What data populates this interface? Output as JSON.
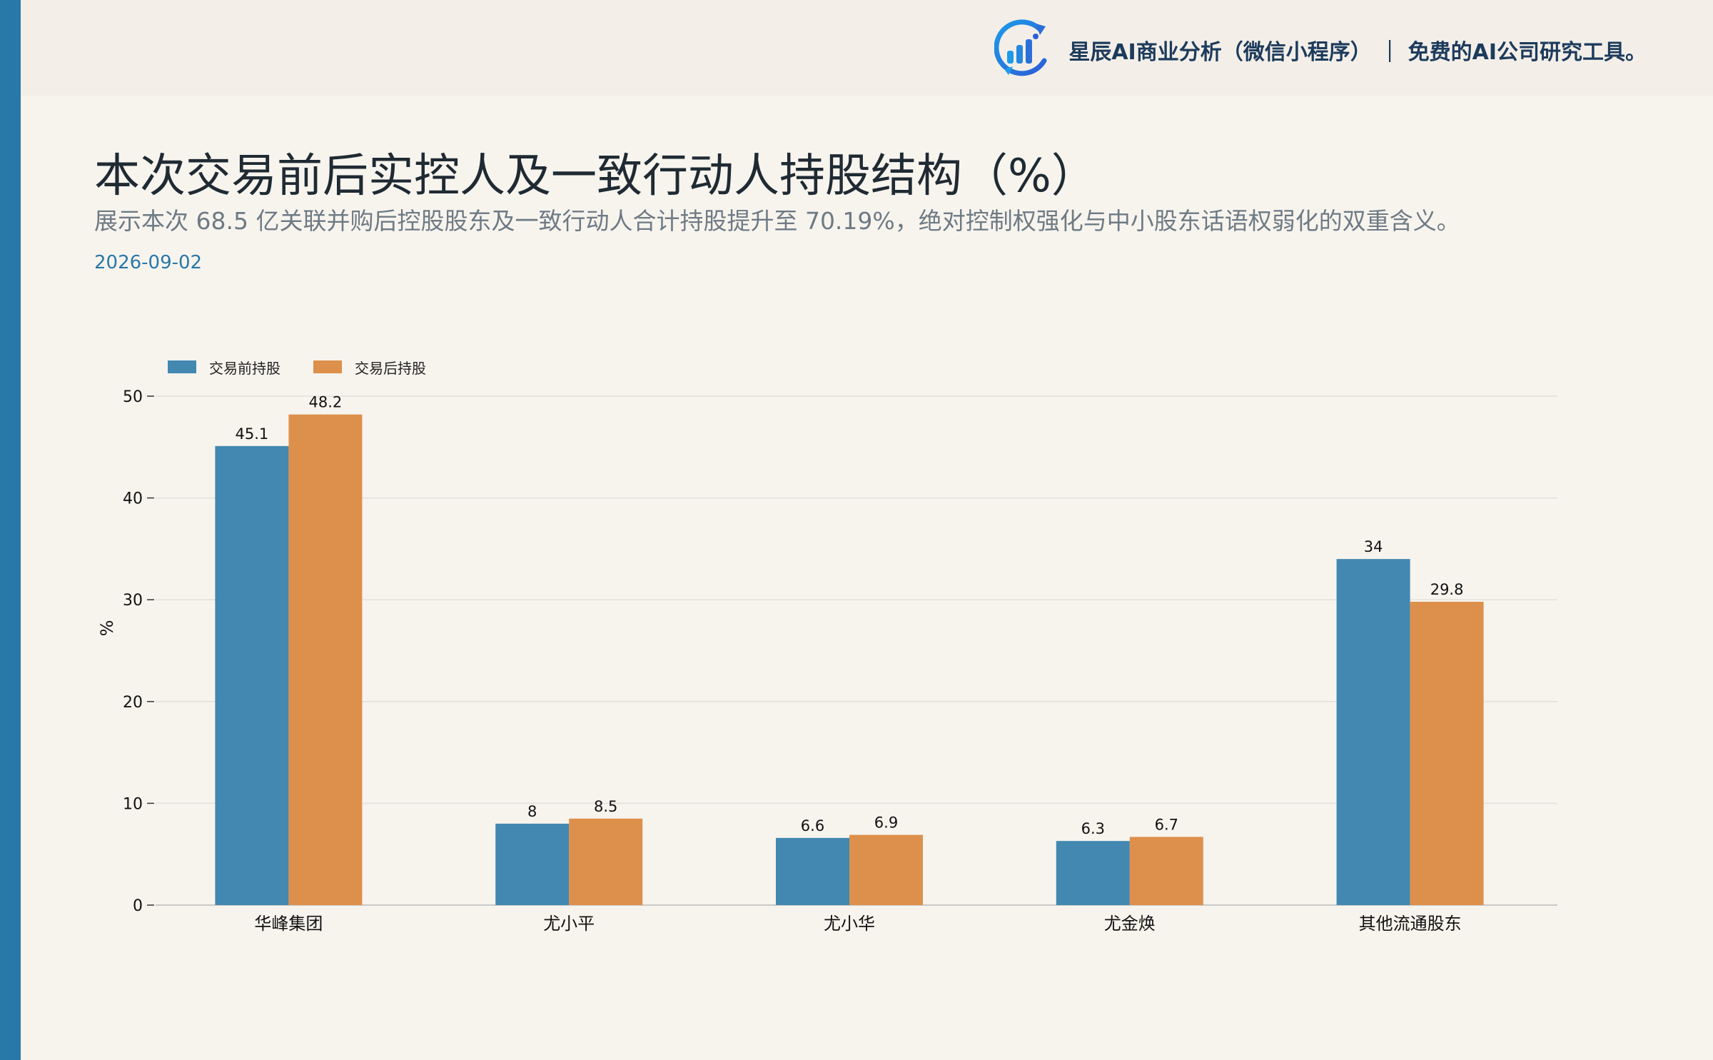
{
  "header": {
    "brand_text": "星辰AI商业分析（微信小程序） ｜ 免费的AI公司研究工具。",
    "brand_icon": "bar-chart-refresh-icon"
  },
  "title": "本次交易前后实控人及一致行动人持股结构（%）",
  "subtitle": "展示本次 68.5 亿关联并购后控股股东及一致行动人合计持股提升至 70.19%，绝对控制权强化与中小股东话语权弱化的双重含义。",
  "date": "2026-09-02",
  "colors": {
    "before": "#4288b1",
    "after": "#dd904c",
    "accent": "#2878a8"
  },
  "chart_data": {
    "type": "bar",
    "categories": [
      "华峰集团",
      "尤小平",
      "尤小华",
      "尤金焕",
      "其他流通股东"
    ],
    "series": [
      {
        "name": "交易前持股",
        "values": [
          45.1,
          8,
          6.6,
          6.3,
          34
        ]
      },
      {
        "name": "交易后持股",
        "values": [
          48.2,
          8.5,
          6.9,
          6.7,
          29.8
        ]
      }
    ],
    "ylabel": "%",
    "ylim": [
      0,
      50
    ],
    "yticks": [
      0,
      10,
      20,
      30,
      40,
      50
    ],
    "grid": true,
    "legend": "top-left"
  }
}
